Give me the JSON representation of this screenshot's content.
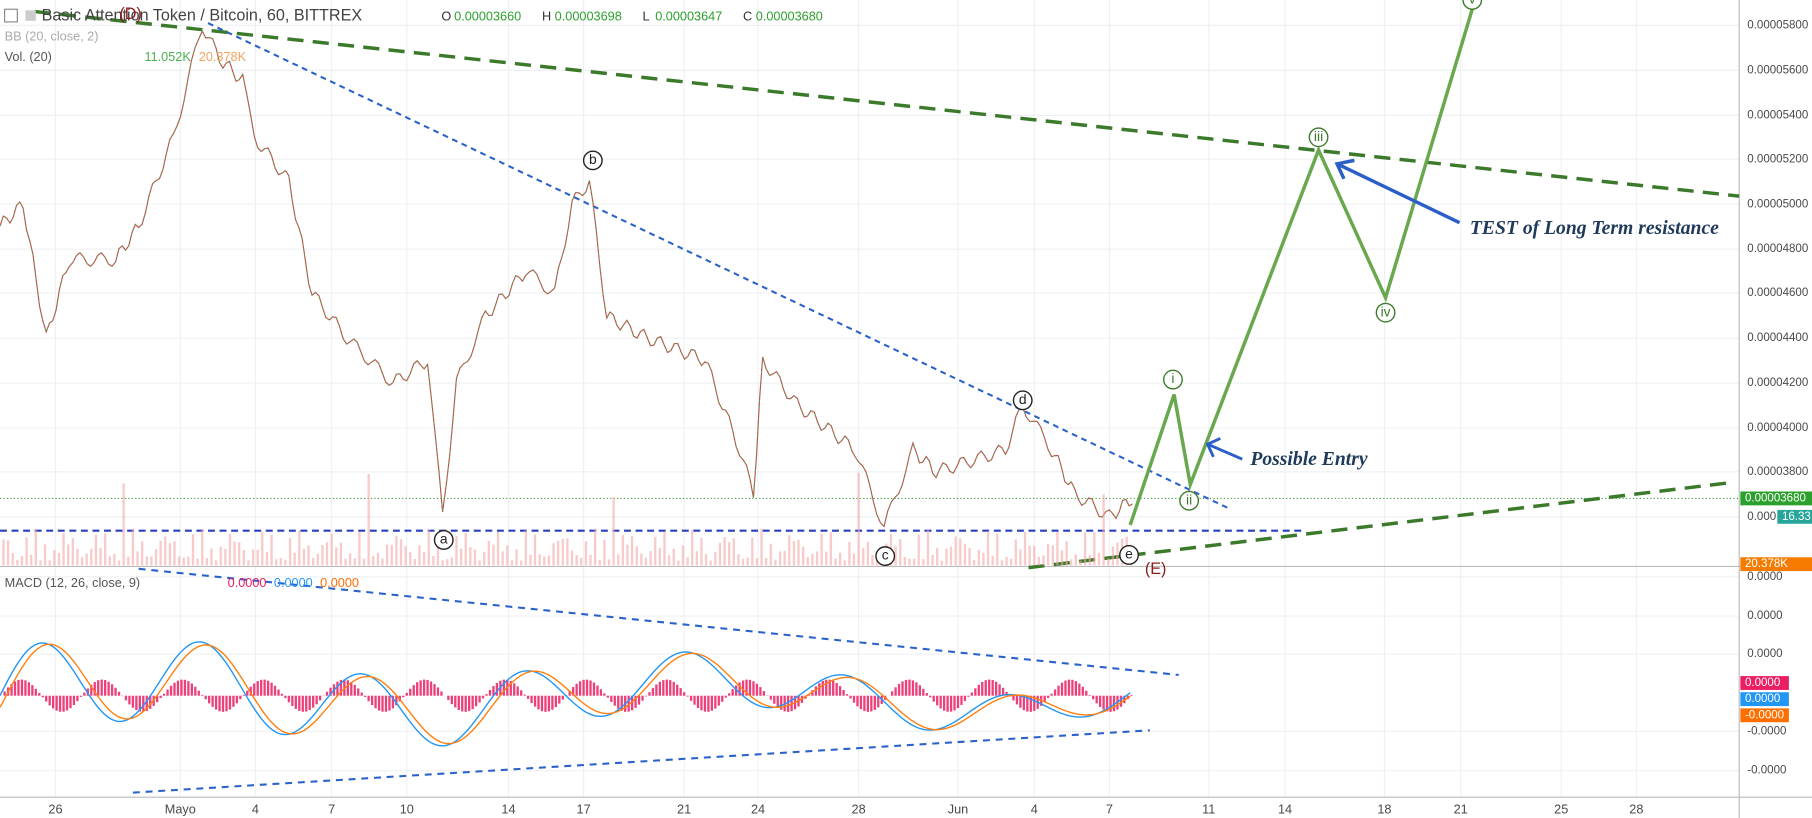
{
  "header": {
    "symbol": "Basic Attention Token / Bitcoin, 60, BITTREX",
    "ohlc": [
      {
        "key": "O",
        "value": "0.00003660"
      },
      {
        "key": "H",
        "value": "0.00003698"
      },
      {
        "key": "L",
        "value": "0.00003647"
      },
      {
        "key": "C",
        "value": "0.00003680"
      }
    ]
  },
  "indicators": {
    "bb": "BB (20, close, 2)",
    "vol": "Vol. (20)",
    "vol_values": [
      "11.052K",
      "20.378K"
    ],
    "macd": "MACD (12, 26, close, 9)",
    "macd_values": [
      "0.0000",
      "0.0000",
      "0.0000"
    ]
  },
  "price_axis": [
    "0.00005800",
    "0.00005600",
    "0.00005400",
    "0.00005200",
    "0.00005000",
    "0.00004800",
    "0.00004600",
    "0.00004400",
    "0.00004200",
    "0.00004000",
    "0.00003800",
    "0.000"
  ],
  "price_tags": [
    "0.00003680",
    "16.33",
    "20.378K"
  ],
  "macd_axis": [
    "0.0000",
    "0.0000",
    "0.0000",
    "-0.0000",
    "-0.0000"
  ],
  "macd_tags": [
    "0.0000",
    "0.0000",
    "-0.0000"
  ],
  "time_axis": [
    "26",
    "Mayo",
    "4",
    "7",
    "10",
    "14",
    "17",
    "21",
    "24",
    "28",
    "Jun",
    "4",
    "7",
    "11",
    "14",
    "18",
    "21",
    "25",
    "28"
  ],
  "wave_labels": [
    "(D)",
    "a",
    "b",
    "c",
    "d",
    "e",
    "(E)"
  ],
  "impulse_labels": [
    "i",
    "ii",
    "iii",
    "iv",
    "v"
  ],
  "annotations": [
    "Possible Entry",
    "TEST of Long Term resistance"
  ]
}
